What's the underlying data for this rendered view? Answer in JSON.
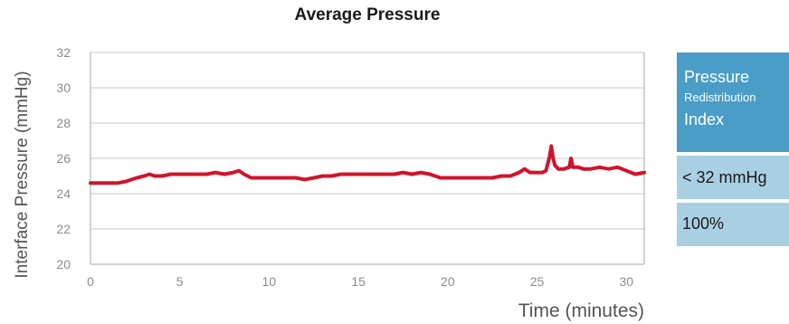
{
  "chart_data": {
    "type": "line",
    "title": "Average Pressure",
    "xlabel": "Time (minutes)",
    "ylabel": "Interface Pressure (mmHg)",
    "xlim": [
      0,
      31
    ],
    "ylim": [
      20,
      32
    ],
    "xticks": [
      0,
      5,
      10,
      15,
      20,
      25,
      30
    ],
    "yticks": [
      20,
      22,
      24,
      26,
      28,
      30,
      32
    ],
    "grid": "horizontal",
    "line_color": "#d0142c",
    "x": [
      0,
      0.5,
      1,
      1.5,
      2,
      2.3,
      2.6,
      3,
      3.3,
      3.6,
      4,
      4.5,
      5,
      5.5,
      6,
      6.5,
      7,
      7.5,
      8,
      8.3,
      8.6,
      9,
      9.5,
      10,
      10.5,
      11,
      11.5,
      12,
      12.5,
      13,
      13.5,
      14,
      14.5,
      15,
      15.5,
      16,
      16.5,
      17,
      17.5,
      18,
      18.5,
      19,
      19.3,
      19.6,
      20,
      20.5,
      21,
      21.5,
      22,
      22.5,
      23,
      23.5,
      24,
      24.3,
      24.6,
      25,
      25.3,
      25.5,
      25.7,
      25.8,
      25.9,
      26,
      26.2,
      26.5,
      26.8,
      26.9,
      27,
      27.3,
      27.6,
      28,
      28.5,
      29,
      29.5,
      30,
      30.5,
      31
    ],
    "y": [
      24.6,
      24.6,
      24.6,
      24.6,
      24.7,
      24.8,
      24.9,
      25.0,
      25.1,
      25.0,
      25.0,
      25.1,
      25.1,
      25.1,
      25.1,
      25.1,
      25.2,
      25.1,
      25.2,
      25.3,
      25.1,
      24.9,
      24.9,
      24.9,
      24.9,
      24.9,
      24.9,
      24.8,
      24.9,
      25.0,
      25.0,
      25.1,
      25.1,
      25.1,
      25.1,
      25.1,
      25.1,
      25.1,
      25.2,
      25.1,
      25.2,
      25.1,
      25.0,
      24.9,
      24.9,
      24.9,
      24.9,
      24.9,
      24.9,
      24.9,
      25.0,
      25.0,
      25.2,
      25.4,
      25.2,
      25.2,
      25.2,
      25.3,
      26.1,
      26.7,
      26.0,
      25.6,
      25.4,
      25.4,
      25.5,
      26.0,
      25.5,
      25.5,
      25.4,
      25.4,
      25.5,
      25.4,
      25.5,
      25.3,
      25.1,
      25.2
    ]
  },
  "index_panel": {
    "line1": "Pressure",
    "line2": "Redistribution",
    "line3": "Index",
    "threshold": "< 32 mmHg",
    "percent": "100%"
  }
}
